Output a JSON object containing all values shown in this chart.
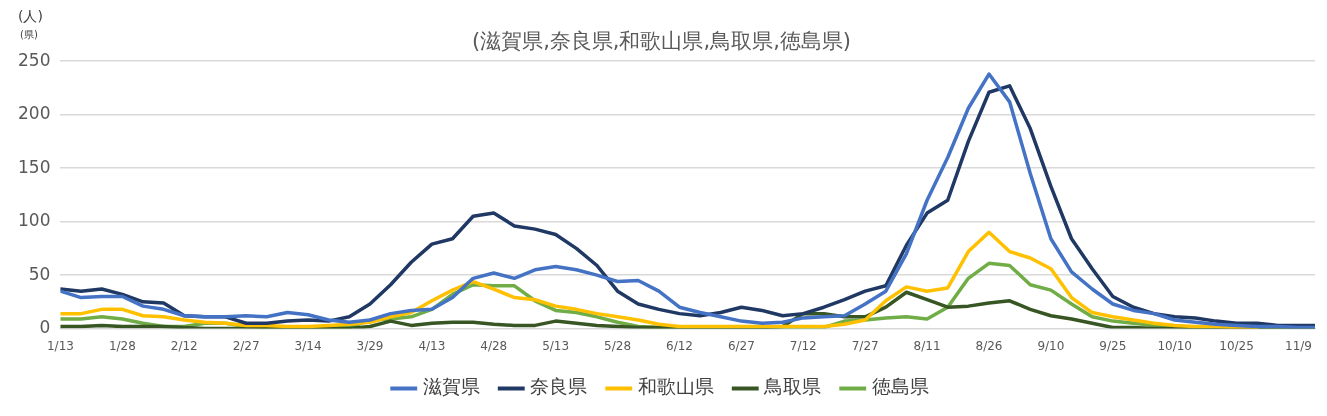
{
  "chart_data": {
    "type": "line",
    "title": "(滋賀県,奈良県,和歌山県,鳥取県,徳島県)",
    "ylabel": "(人)",
    "annotations": [
      "(県)"
    ],
    "x": [
      "--01-13",
      "--01-18",
      "--01-23",
      "--01-28",
      "--02-02",
      "--02-07",
      "--02-12",
      "--02-17",
      "--02-22",
      "--02-27",
      "--03-04",
      "--03-09",
      "--03-14",
      "--03-19",
      "--03-24",
      "--03-29",
      "--04-03",
      "--04-08",
      "--04-13",
      "--04-18",
      "--04-23",
      "--04-28",
      "--05-03",
      "--05-08",
      "--05-13",
      "--05-18",
      "--05-23",
      "--05-28",
      "--06-02",
      "--06-07",
      "--06-12",
      "--06-17",
      "--06-22",
      "--06-27",
      "--07-02",
      "--07-07",
      "--07-12",
      "--07-17",
      "--07-22",
      "--07-27",
      "--08-01",
      "--08-06",
      "--08-11",
      "--08-16",
      "--08-21",
      "--08-26",
      "--08-31",
      "--09-05",
      "--09-10",
      "--09-15",
      "--09-20",
      "--09-25",
      "--09-30",
      "--10-05",
      "--10-10",
      "--10-15",
      "--10-20",
      "--10-25",
      "--10-30",
      "--11-04",
      "--11-09",
      "--11-13"
    ],
    "series": [
      {
        "name": "滋賀県",
        "color": "#4472c4",
        "values": [
          35,
          29,
          30,
          30,
          21,
          18,
          12,
          11,
          11,
          12,
          11,
          15,
          13,
          8,
          6,
          8,
          14,
          17,
          18,
          29,
          47,
          52,
          47,
          55,
          58,
          55,
          50,
          44,
          45,
          35,
          20,
          15,
          11,
          7,
          5,
          6,
          10,
          11,
          12,
          23,
          35,
          70,
          120,
          160,
          206,
          238,
          212,
          145,
          84,
          53,
          37,
          23,
          17,
          14,
          8,
          6,
          4,
          3,
          2,
          2,
          1,
          1
        ]
      },
      {
        "name": "奈良県",
        "color": "#203864",
        "values": [
          37,
          35,
          37,
          32,
          25,
          24,
          12,
          11,
          11,
          5,
          5,
          7,
          8,
          7,
          11,
          23,
          41,
          62,
          79,
          84,
          105,
          108,
          96,
          93,
          88,
          75,
          59,
          35,
          23,
          18,
          14,
          12,
          15,
          20,
          17,
          12,
          14,
          20,
          27,
          35,
          40,
          78,
          108,
          120,
          175,
          221,
          227,
          187,
          133,
          84,
          56,
          30,
          20,
          14,
          11,
          10,
          7,
          5,
          5,
          3,
          3,
          3
        ]
      },
      {
        "name": "和歌山県",
        "color": "#ffc000",
        "values": [
          14,
          14,
          18,
          18,
          12,
          11,
          8,
          6,
          5,
          3,
          3,
          2,
          2,
          3,
          4,
          6,
          11,
          15,
          26,
          36,
          44,
          37,
          29,
          27,
          21,
          18,
          14,
          11,
          8,
          4,
          2,
          2,
          2,
          2,
          2,
          2,
          2,
          2,
          4,
          8,
          26,
          39,
          35,
          38,
          72,
          90,
          72,
          66,
          56,
          29,
          15,
          11,
          8,
          5,
          3,
          2,
          2,
          1,
          1,
          null,
          null,
          null
        ]
      },
      {
        "name": "鳥取県",
        "color": "#375623",
        "values": [
          2,
          2,
          3,
          2,
          2,
          2,
          1,
          0,
          0,
          0,
          0,
          0,
          0,
          0,
          0,
          2,
          7,
          3,
          5,
          6,
          6,
          4,
          3,
          3,
          7,
          5,
          3,
          2,
          1,
          1,
          1,
          1,
          1,
          1,
          1,
          2,
          14,
          14,
          11,
          11,
          20,
          34,
          27,
          20,
          21,
          24,
          26,
          18,
          12,
          9,
          5,
          1,
          1,
          0,
          0,
          0,
          0,
          0,
          0,
          0,
          0,
          0
        ]
      },
      {
        "name": "徳島県",
        "color": "#70ad47",
        "values": [
          9,
          9,
          11,
          9,
          5,
          2,
          2,
          5,
          5,
          2,
          1,
          1,
          1,
          1,
          1,
          8,
          9,
          11,
          18,
          32,
          41,
          40,
          40,
          26,
          17,
          15,
          11,
          6,
          2,
          1,
          1,
          1,
          1,
          1,
          1,
          1,
          1,
          1,
          7,
          8,
          10,
          11,
          9,
          20,
          47,
          61,
          59,
          41,
          36,
          23,
          11,
          7,
          5,
          3,
          2,
          1,
          1,
          1,
          1,
          1,
          1,
          1
        ]
      }
    ],
    "xlim": [
      "--01-13",
      "--11-13"
    ],
    "xticks": [
      {
        "value": "--01-13",
        "label": "1/13"
      },
      {
        "value": "--01-28",
        "label": "1/28"
      },
      {
        "value": "--02-12",
        "label": "2/12"
      },
      {
        "value": "--02-27",
        "label": "2/27"
      },
      {
        "value": "--03-14",
        "label": "3/14"
      },
      {
        "value": "--03-29",
        "label": "3/29"
      },
      {
        "value": "--04-13",
        "label": "4/13"
      },
      {
        "value": "--04-28",
        "label": "4/28"
      },
      {
        "value": "--05-13",
        "label": "5/13"
      },
      {
        "value": "--05-28",
        "label": "5/28"
      },
      {
        "value": "--06-12",
        "label": "6/12"
      },
      {
        "value": "--06-27",
        "label": "6/27"
      },
      {
        "value": "--07-12",
        "label": "7/12"
      },
      {
        "value": "--07-27",
        "label": "7/27"
      },
      {
        "value": "--08-11",
        "label": "8/11"
      },
      {
        "value": "--08-26",
        "label": "8/26"
      },
      {
        "value": "--09-10",
        "label": "9/10"
      },
      {
        "value": "--09-25",
        "label": "9/25"
      },
      {
        "value": "--10-10",
        "label": "10/10"
      },
      {
        "value": "--10-25",
        "label": "10/25"
      },
      {
        "value": "--11-09",
        "label": "11/9"
      }
    ],
    "ylim": [
      0,
      250
    ],
    "yticks": [
      0,
      50,
      100,
      150,
      200,
      250
    ],
    "grid": "y",
    "legend": "bottom",
    "marker": "none",
    "line_style": "solid"
  }
}
